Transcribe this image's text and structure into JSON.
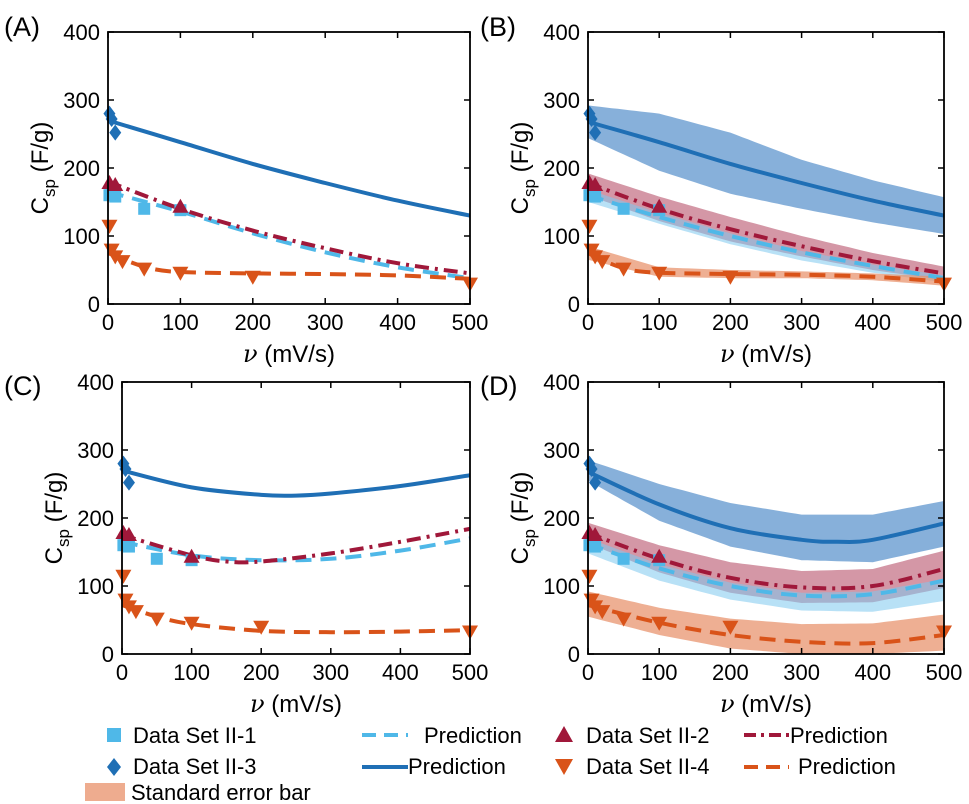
{
  "colors": {
    "ds1": "#4fb8e8",
    "ds3": "#1f6fb5",
    "ds2": "#a0183a",
    "ds4": "#d95319",
    "band_ds3": "#3d7fc4",
    "band_ds2": "#a0183a",
    "band_ds1": "#7ec8ee",
    "band_ds4": "#e8906a",
    "axis": "#000000"
  },
  "axes_common": {
    "xlabel_symbol": "ν",
    "xlabel_unit": " (mV/s)",
    "ylabel_main": "C",
    "ylabel_sub": "sp",
    "ylabel_unit": " (F/g)",
    "xlim": [
      0,
      500
    ],
    "ylim": [
      0,
      400
    ],
    "xticks": [
      "0",
      "100",
      "200",
      "300",
      "400",
      "500"
    ],
    "yticks": [
      "0",
      "100",
      "200",
      "300",
      "400"
    ]
  },
  "panel_labels": [
    "(A)",
    "(B)",
    "(C)",
    "(D)"
  ],
  "legend": {
    "ds1": "Data Set II-1",
    "ds3": "Data Set II-3",
    "pred_ds1": "Prediction",
    "pred_ds3": "Prediction",
    "ds2": "Data Set II-2",
    "ds4": "Data Set II-4",
    "pred_ds2": "Prediction",
    "pred_ds4": "Prediction",
    "band": "Standard error bar"
  },
  "chart_data": [
    {
      "panel": "(A)",
      "type": "scatter",
      "xlabel": "ν (mV/s)",
      "ylabel": "Csp (F/g)",
      "xlim": [
        0,
        500
      ],
      "ylim": [
        0,
        400
      ],
      "scatter": {
        "ds1": [
          [
            2,
            160
          ],
          [
            5,
            162
          ],
          [
            10,
            158
          ],
          [
            50,
            140
          ],
          [
            100,
            138
          ]
        ],
        "ds3": [
          [
            2,
            280
          ],
          [
            5,
            272
          ],
          [
            10,
            252
          ]
        ],
        "ds2": [
          [
            2,
            178
          ],
          [
            10,
            175
          ],
          [
            100,
            143
          ]
        ],
        "ds4": [
          [
            2,
            115
          ],
          [
            5,
            80
          ],
          [
            10,
            70
          ],
          [
            20,
            63
          ],
          [
            50,
            52
          ],
          [
            100,
            46
          ],
          [
            200,
            40
          ],
          [
            500,
            30
          ]
        ]
      },
      "lines": {
        "pred_ds3": [
          [
            0,
            270
          ],
          [
            100,
            238
          ],
          [
            200,
            206
          ],
          [
            300,
            178
          ],
          [
            400,
            152
          ],
          [
            500,
            130
          ]
        ],
        "pred_ds2": [
          [
            0,
            180
          ],
          [
            100,
            140
          ],
          [
            200,
            108
          ],
          [
            300,
            82
          ],
          [
            400,
            60
          ],
          [
            500,
            45
          ]
        ],
        "pred_ds1": [
          [
            0,
            165
          ],
          [
            100,
            136
          ],
          [
            200,
            104
          ],
          [
            300,
            76
          ],
          [
            400,
            54
          ],
          [
            500,
            38
          ]
        ],
        "pred_ds4": [
          [
            0,
            75
          ],
          [
            30,
            62
          ],
          [
            60,
            52
          ],
          [
            100,
            47
          ],
          [
            200,
            45
          ],
          [
            300,
            44
          ],
          [
            400,
            42
          ],
          [
            500,
            37
          ]
        ]
      },
      "bands": {}
    },
    {
      "panel": "(B)",
      "type": "scatter",
      "xlabel": "ν (mV/s)",
      "ylabel": "Csp (F/g)",
      "xlim": [
        0,
        500
      ],
      "ylim": [
        0,
        400
      ],
      "scatter": {
        "ds1": [
          [
            2,
            160
          ],
          [
            5,
            162
          ],
          [
            10,
            158
          ],
          [
            50,
            140
          ],
          [
            100,
            138
          ]
        ],
        "ds3": [
          [
            2,
            280
          ],
          [
            5,
            272
          ],
          [
            10,
            252
          ]
        ],
        "ds2": [
          [
            2,
            178
          ],
          [
            10,
            175
          ],
          [
            100,
            143
          ]
        ],
        "ds4": [
          [
            2,
            115
          ],
          [
            5,
            80
          ],
          [
            10,
            70
          ],
          [
            20,
            63
          ],
          [
            50,
            52
          ],
          [
            100,
            46
          ],
          [
            200,
            40
          ],
          [
            500,
            30
          ]
        ]
      },
      "lines": {
        "pred_ds3": [
          [
            0,
            268
          ],
          [
            100,
            238
          ],
          [
            200,
            206
          ],
          [
            300,
            178
          ],
          [
            400,
            152
          ],
          [
            500,
            130
          ]
        ],
        "pred_ds2": [
          [
            0,
            178
          ],
          [
            100,
            140
          ],
          [
            200,
            110
          ],
          [
            300,
            85
          ],
          [
            400,
            63
          ],
          [
            500,
            45
          ]
        ],
        "pred_ds1": [
          [
            0,
            160
          ],
          [
            100,
            128
          ],
          [
            200,
            100
          ],
          [
            300,
            76
          ],
          [
            400,
            56
          ],
          [
            500,
            38
          ]
        ],
        "pred_ds4": [
          [
            0,
            75
          ],
          [
            30,
            60
          ],
          [
            60,
            50
          ],
          [
            100,
            46
          ],
          [
            200,
            44
          ],
          [
            300,
            43
          ],
          [
            400,
            40
          ],
          [
            500,
            33
          ]
        ]
      },
      "bands": {
        "ds3": {
          "x": [
            0,
            100,
            200,
            300,
            400,
            500
          ],
          "upper": [
            292,
            280,
            252,
            212,
            182,
            157
          ],
          "lower": [
            244,
            196,
            162,
            140,
            120,
            103
          ]
        },
        "ds2": {
          "x": [
            0,
            100,
            200,
            300,
            400,
            500
          ],
          "upper": [
            192,
            158,
            128,
            100,
            75,
            55
          ],
          "lower": [
            160,
            122,
            92,
            70,
            50,
            35
          ]
        },
        "ds1": {
          "x": [
            0,
            100,
            200,
            300,
            400,
            500
          ],
          "upper": [
            168,
            134,
            104,
            78,
            58,
            42
          ],
          "lower": [
            150,
            118,
            88,
            64,
            46,
            32
          ]
        },
        "ds4": {
          "x": [
            0,
            100,
            200,
            300,
            400,
            500
          ],
          "upper": [
            85,
            54,
            50,
            48,
            45,
            40
          ],
          "lower": [
            65,
            40,
            38,
            38,
            35,
            27
          ]
        }
      }
    },
    {
      "panel": "(C)",
      "type": "scatter",
      "xlabel": "ν (mV/s)",
      "ylabel": "Csp (F/g)",
      "xlim": [
        0,
        500
      ],
      "ylim": [
        0,
        400
      ],
      "scatter": {
        "ds1": [
          [
            2,
            160
          ],
          [
            5,
            162
          ],
          [
            10,
            158
          ],
          [
            50,
            140
          ],
          [
            100,
            138
          ]
        ],
        "ds3": [
          [
            2,
            280
          ],
          [
            5,
            272
          ],
          [
            10,
            252
          ]
        ],
        "ds2": [
          [
            2,
            178
          ],
          [
            10,
            175
          ],
          [
            100,
            143
          ]
        ],
        "ds4": [
          [
            2,
            115
          ],
          [
            5,
            80
          ],
          [
            10,
            70
          ],
          [
            20,
            63
          ],
          [
            50,
            52
          ],
          [
            100,
            46
          ],
          [
            200,
            40
          ],
          [
            500,
            33
          ]
        ]
      },
      "lines": {
        "pred_ds3": [
          [
            0,
            270
          ],
          [
            100,
            245
          ],
          [
            200,
            234
          ],
          [
            250,
            233
          ],
          [
            300,
            236
          ],
          [
            400,
            247
          ],
          [
            500,
            263
          ]
        ],
        "pred_ds2": [
          [
            0,
            175
          ],
          [
            100,
            145
          ],
          [
            150,
            136
          ],
          [
            200,
            136
          ],
          [
            300,
            148
          ],
          [
            400,
            165
          ],
          [
            500,
            184
          ]
        ],
        "pred_ds1": [
          [
            0,
            165
          ],
          [
            100,
            145
          ],
          [
            200,
            138
          ],
          [
            300,
            140
          ],
          [
            400,
            152
          ],
          [
            500,
            170
          ]
        ],
        "pred_ds4": [
          [
            0,
            72
          ],
          [
            50,
            55
          ],
          [
            100,
            44
          ],
          [
            200,
            34
          ],
          [
            300,
            32
          ],
          [
            400,
            33
          ],
          [
            500,
            35
          ]
        ]
      },
      "bands": {}
    },
    {
      "panel": "(D)",
      "type": "scatter",
      "xlabel": "ν (mV/s)",
      "ylabel": "Csp (F/g)",
      "xlim": [
        0,
        500
      ],
      "ylim": [
        0,
        400
      ],
      "scatter": {
        "ds1": [
          [
            2,
            160
          ],
          [
            5,
            162
          ],
          [
            10,
            158
          ],
          [
            50,
            140
          ],
          [
            100,
            138
          ]
        ],
        "ds3": [
          [
            2,
            280
          ],
          [
            5,
            272
          ],
          [
            10,
            252
          ]
        ],
        "ds2": [
          [
            2,
            178
          ],
          [
            10,
            175
          ],
          [
            100,
            143
          ]
        ],
        "ds4": [
          [
            2,
            115
          ],
          [
            5,
            80
          ],
          [
            10,
            70
          ],
          [
            20,
            63
          ],
          [
            50,
            52
          ],
          [
            100,
            46
          ],
          [
            200,
            40
          ],
          [
            500,
            33
          ]
        ]
      },
      "lines": {
        "pred_ds3": [
          [
            0,
            268
          ],
          [
            100,
            220
          ],
          [
            200,
            185
          ],
          [
            300,
            168
          ],
          [
            350,
            165
          ],
          [
            400,
            168
          ],
          [
            500,
            192
          ]
        ],
        "pred_ds2": [
          [
            0,
            178
          ],
          [
            100,
            140
          ],
          [
            200,
            112
          ],
          [
            300,
            98
          ],
          [
            400,
            100
          ],
          [
            500,
            125
          ]
        ],
        "pred_ds1": [
          [
            0,
            162
          ],
          [
            100,
            126
          ],
          [
            200,
            100
          ],
          [
            300,
            86
          ],
          [
            400,
            88
          ],
          [
            500,
            108
          ]
        ],
        "pred_ds4": [
          [
            0,
            72
          ],
          [
            100,
            46
          ],
          [
            200,
            28
          ],
          [
            300,
            18
          ],
          [
            400,
            16
          ],
          [
            500,
            28
          ]
        ]
      },
      "bands": {
        "ds3": {
          "x": [
            0,
            100,
            200,
            300,
            400,
            500
          ],
          "upper": [
            285,
            250,
            222,
            205,
            205,
            225
          ],
          "lower": [
            255,
            196,
            158,
            138,
            135,
            158
          ]
        },
        "ds2": {
          "x": [
            0,
            100,
            200,
            300,
            400,
            500
          ],
          "upper": [
            193,
            160,
            135,
            122,
            125,
            152
          ],
          "lower": [
            163,
            120,
            90,
            75,
            76,
            97
          ]
        },
        "ds1": {
          "x": [
            0,
            100,
            200,
            300,
            400,
            500
          ],
          "upper": [
            170,
            132,
            105,
            90,
            92,
            110
          ],
          "lower": [
            148,
            108,
            80,
            64,
            62,
            78
          ]
        },
        "ds4": {
          "x": [
            0,
            100,
            200,
            300,
            400,
            500
          ],
          "upper": [
            92,
            68,
            52,
            44,
            45,
            58
          ],
          "lower": [
            55,
            28,
            8,
            0,
            0,
            5
          ]
        }
      }
    }
  ]
}
